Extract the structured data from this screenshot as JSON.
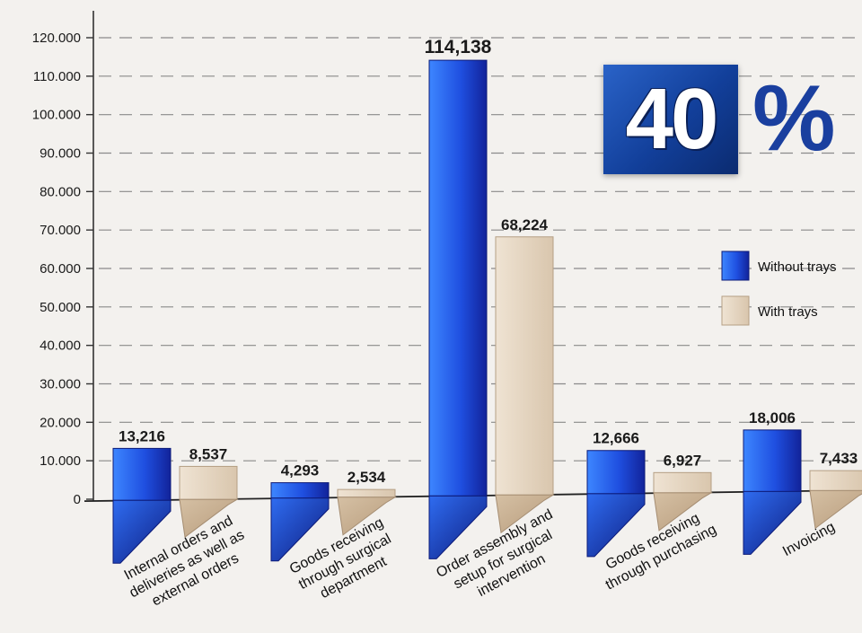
{
  "chart_data": {
    "type": "bar",
    "categories": [
      [
        "Internal orders and",
        "deliveries as well as",
        "external orders"
      ],
      [
        "Goods receiving",
        "through surgical",
        "department"
      ],
      [
        "Order assembly and",
        "setup for surgical",
        "intervention"
      ],
      [
        "Goods receiving",
        "through purchasing"
      ],
      [
        "Invoicing"
      ]
    ],
    "series": [
      {
        "name": "Without trays",
        "values": [
          13216,
          4293,
          114138,
          12666,
          18006
        ],
        "labels": [
          "13,216",
          "4,293",
          "114,138",
          "12,666",
          "18,006"
        ],
        "color": "#1f4fe0"
      },
      {
        "name": "With trays",
        "values": [
          8537,
          2534,
          68224,
          6927,
          7433
        ],
        "labels": [
          "8,537",
          "2,534",
          "68,224",
          "6,927",
          "7,433"
        ],
        "color": "#e3d3bf"
      }
    ],
    "ylim": [
      0,
      120000
    ],
    "yticks": [
      0,
      10000,
      20000,
      30000,
      40000,
      50000,
      60000,
      70000,
      80000,
      90000,
      100000,
      110000,
      120000
    ],
    "ytick_labels": [
      "0",
      "10.000",
      "20.000",
      "30.000",
      "40.000",
      "50.000",
      "60.000",
      "70.000",
      "80.000",
      "90.000",
      "100.000",
      "110.000",
      "120.000"
    ],
    "grid": true,
    "legend_position": "right"
  },
  "badge": {
    "number": "40",
    "symbol": "%"
  }
}
